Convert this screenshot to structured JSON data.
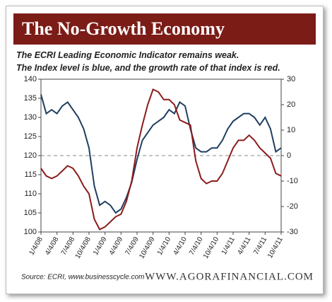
{
  "chart_data": {
    "type": "line",
    "title": "The No-Growth Economy",
    "subtitle": [
      "The ECRI Leading Economic Indicator remains weak.",
      "The Index level is blue, and the growth rate of that index is red."
    ],
    "source": "Source: ECRI, www.businesscycle.com",
    "brand": "WWW.AGORAFINANCIAL.COM",
    "categories": [
      "1/4/08",
      null,
      null,
      "4/4/08",
      null,
      null,
      "7/4/08",
      null,
      null,
      "10/4/08",
      null,
      null,
      "1/4/09",
      null,
      null,
      "4/4/09",
      null,
      null,
      "7/4/09",
      null,
      null,
      "10/4/09",
      null,
      null,
      "1/4/10",
      null,
      null,
      "4/4/10",
      null,
      null,
      "7/4/10",
      null,
      null,
      "10/4/10",
      null,
      null,
      "1/4/11",
      null,
      null,
      "4/4/11",
      null,
      null,
      "7/4/11",
      null,
      null,
      "10/4/11"
    ],
    "series": [
      {
        "name": "Index level",
        "color": "#1f3f5f",
        "values": [
          136,
          131,
          132,
          131,
          133,
          134,
          132,
          130,
          127,
          122,
          112,
          107,
          108,
          107,
          105,
          106,
          109,
          113,
          119,
          124,
          126,
          128,
          129,
          130,
          132,
          131,
          134,
          133,
          127,
          122,
          121,
          121,
          122,
          122,
          124,
          127,
          129,
          130,
          131,
          131,
          130,
          128,
          130,
          127,
          121,
          122
        ]
      },
      {
        "name": "Growth rate",
        "color": "#8b1c1c",
        "axis": "y2",
        "values": [
          -5,
          -8,
          -9,
          -8,
          -6,
          -4,
          -5,
          -8,
          -12,
          -15,
          -25,
          -29,
          -28,
          -26,
          -24,
          -23,
          -18,
          -10,
          3,
          12,
          20,
          26,
          25,
          22,
          22,
          20,
          14,
          13,
          12,
          -2,
          -9,
          -11,
          -10,
          -10,
          -7,
          -2,
          3,
          6,
          6,
          8,
          6,
          3,
          1,
          -1,
          -7,
          -8
        ]
      }
    ],
    "ylim": [
      100,
      140
    ],
    "yticks": [
      100,
      105,
      110,
      115,
      120,
      125,
      130,
      135,
      140
    ],
    "y2lim": [
      -30,
      30
    ],
    "y2ticks": [
      -30,
      -20,
      -10,
      0,
      10,
      20,
      30
    ],
    "reference_line": {
      "axis": "y2",
      "value": 0
    }
  }
}
